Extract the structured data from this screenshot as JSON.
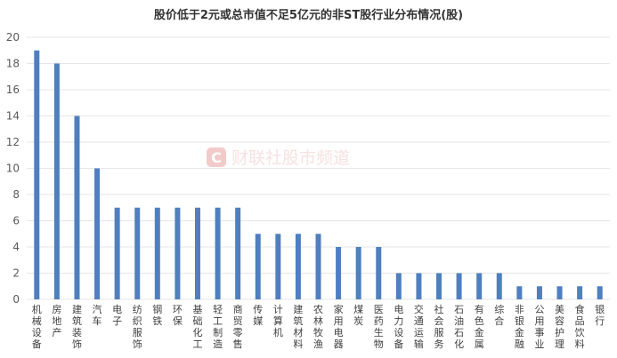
{
  "chart_data": {
    "type": "bar",
    "title": "股价低于2元或总市值不足5亿元的非ST股行业分布情况(股)",
    "xlabel": "",
    "ylabel": "",
    "ylim": [
      0,
      20
    ],
    "yticks": [
      0,
      2,
      4,
      6,
      8,
      10,
      12,
      14,
      16,
      18,
      20
    ],
    "grid": "horizontal",
    "bar_color": "#4f7fbe",
    "categories": [
      "机械设备",
      "房地产",
      "建筑装饰",
      "汽车",
      "电子",
      "纺织服饰",
      "钢铁",
      "环保",
      "基础化工",
      "轻工制造",
      "商贸零售",
      "传媒",
      "计算机",
      "建筑材料",
      "农林牧渔",
      "家用电器",
      "煤炭",
      "医药生物",
      "电力设备",
      "交通运输",
      "社会服务",
      "石油石化",
      "有色金属",
      "综合",
      "非银金融",
      "公用事业",
      "美容护理",
      "食品饮料",
      "银行"
    ],
    "values": [
      19,
      18,
      14,
      10,
      7,
      7,
      7,
      7,
      7,
      7,
      7,
      5,
      5,
      5,
      5,
      4,
      4,
      4,
      2,
      2,
      2,
      2,
      2,
      2,
      1,
      1,
      1,
      1,
      1
    ]
  },
  "watermark": {
    "logo_letter": "C",
    "text": "财联社股市频道",
    "color": "#e8a0a0"
  }
}
